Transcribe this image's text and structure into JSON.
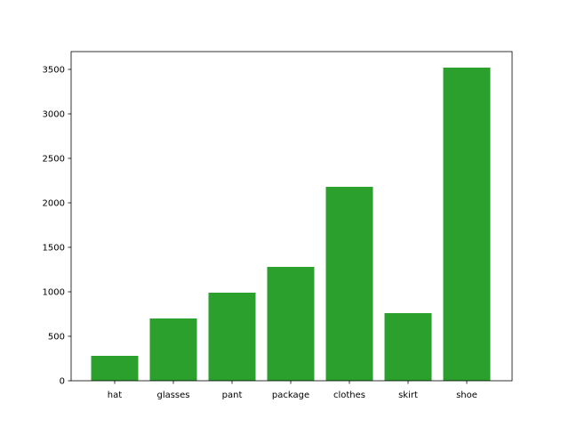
{
  "chart_data": {
    "type": "bar",
    "title": "",
    "xlabel": "",
    "ylabel": "",
    "categories": [
      "hat",
      "glasses",
      "pant",
      "package",
      "clothes",
      "skirt",
      "shoe"
    ],
    "values": [
      280,
      700,
      990,
      1280,
      2180,
      760,
      3520
    ],
    "ylim": [
      0,
      3700
    ],
    "yticks": [
      0,
      500,
      1000,
      1500,
      2000,
      2500,
      3000,
      3500
    ],
    "bar_color": "#2ca02c",
    "grid": false,
    "legend": "none"
  }
}
